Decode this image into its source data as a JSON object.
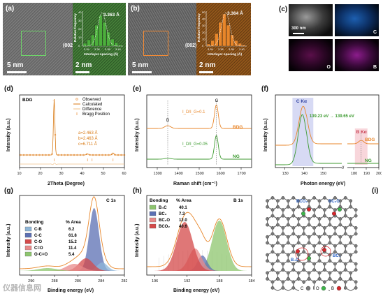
{
  "panels": {
    "a": {
      "label": "(a)",
      "inset_value": "3.363 Å",
      "scale_text": "5 nm",
      "inset_scale": "2 nm",
      "plane": "(002)",
      "hist_ylabel": "Relative frequency",
      "hist_xlabel": "Interlayer spacing (Å)",
      "hist_ticks": [
        "3.34",
        "3.36",
        "3.38",
        "3.40"
      ],
      "hist_yticks": [
        "0",
        "10",
        "20",
        "30",
        "40"
      ],
      "color": "#4caf3c"
    },
    "b": {
      "label": "(b)",
      "inset_value": "3.364 Å",
      "scale_text": "5 nm",
      "inset_scale": "2 nm",
      "plane": "(002)",
      "hist_ylabel": "Relative frequency",
      "hist_xlabel": "Interlayer spacing (Å)",
      "hist_ticks": [
        "3.34",
        "3.36",
        "3.38",
        "3.40"
      ],
      "hist_yticks": [
        "0",
        "10",
        "20",
        "30",
        "40",
        "50"
      ],
      "color": "#e8862a"
    },
    "c": {
      "label": "(c)",
      "scale_text": "300 nm",
      "maps": [
        "C",
        "O",
        "B"
      ]
    },
    "d": {
      "label": "(d)",
      "sample": "BDG",
      "legend": [
        "Observed",
        "Calculated",
        "Difference",
        "Bragg Position"
      ],
      "lattice": [
        "a=2.463 Å",
        "b=2.463 Å",
        "c=6.711 Å"
      ],
      "xlabel": "2Theta (Degree)",
      "ylabel": "Intensity (a.u.)",
      "xticks": [
        "10",
        "20",
        "30",
        "40",
        "50",
        "60"
      ]
    },
    "e": {
      "label": "(e)",
      "xlabel": "Raman shift (cm⁻¹)",
      "ylabel": "Intensity (a.u.)",
      "xticks": [
        "1300",
        "1400",
        "1500",
        "1600",
        "1700"
      ],
      "d_band": "D",
      "g_band": "G",
      "ratio_bdg": "I_D/I_G=0.1",
      "ratio_ng": "I_D/I_G=0.05",
      "series": [
        "BDG",
        "NG"
      ]
    },
    "f": {
      "label": "(f)",
      "xlabel": "Photon energy (eV)",
      "ylabel": "Intensity (a.u.)",
      "xticks": [
        "130",
        "140",
        "150",
        "180",
        "190",
        "200"
      ],
      "c_label": "C Kα",
      "b_label": "B Kα",
      "shift": "139.23 eV → 139.65 eV",
      "series": [
        "BDG",
        "NG"
      ]
    },
    "g": {
      "label": "(g)",
      "title": "C 1s",
      "xlabel": "Binding energy (eV)",
      "ylabel": "Intensity (a.u.)",
      "xticks": [
        "290",
        "288",
        "286",
        "284",
        "282"
      ],
      "table_headers": [
        "Bonding",
        "% Area"
      ],
      "rows": [
        {
          "name": "C-B",
          "value": "6.2",
          "color": "#8fb6d8"
        },
        {
          "name": "C-C",
          "value": "61.8",
          "color": "#5b6fb3"
        },
        {
          "name": "C-O",
          "value": "15.2",
          "color": "#d44a4a"
        },
        {
          "name": "C=O",
          "value": "11.4",
          "color": "#e88a8a"
        },
        {
          "name": "O-C=O",
          "value": "5.4",
          "color": "#8dc56e"
        }
      ]
    },
    "h": {
      "label": "(h)",
      "title": "B 1s",
      "xlabel": "Binding energy (eV)",
      "ylabel": "Intensity (a.u.)",
      "xticks": [
        "196",
        "192",
        "188",
        "184"
      ],
      "table_headers": [
        "Bonding",
        "% Area"
      ],
      "rows": [
        {
          "name": "B₄C",
          "value": "40.1",
          "color": "#8dc56e"
        },
        {
          "name": "BC₃",
          "value": "7.3",
          "color": "#5b6fb3"
        },
        {
          "name": "BC₂O",
          "value": "12.0",
          "color": "#e88a8a"
        },
        {
          "name": "BCO₂",
          "value": "40.6",
          "color": "#d44a4a"
        }
      ]
    },
    "i": {
      "label": "(i)",
      "sites": [
        "BCO₂",
        "BC₂O",
        "B₄C",
        "BC₃"
      ],
      "legend": [
        "C",
        "O",
        "B"
      ]
    }
  },
  "watermark": "仪器信息网"
}
